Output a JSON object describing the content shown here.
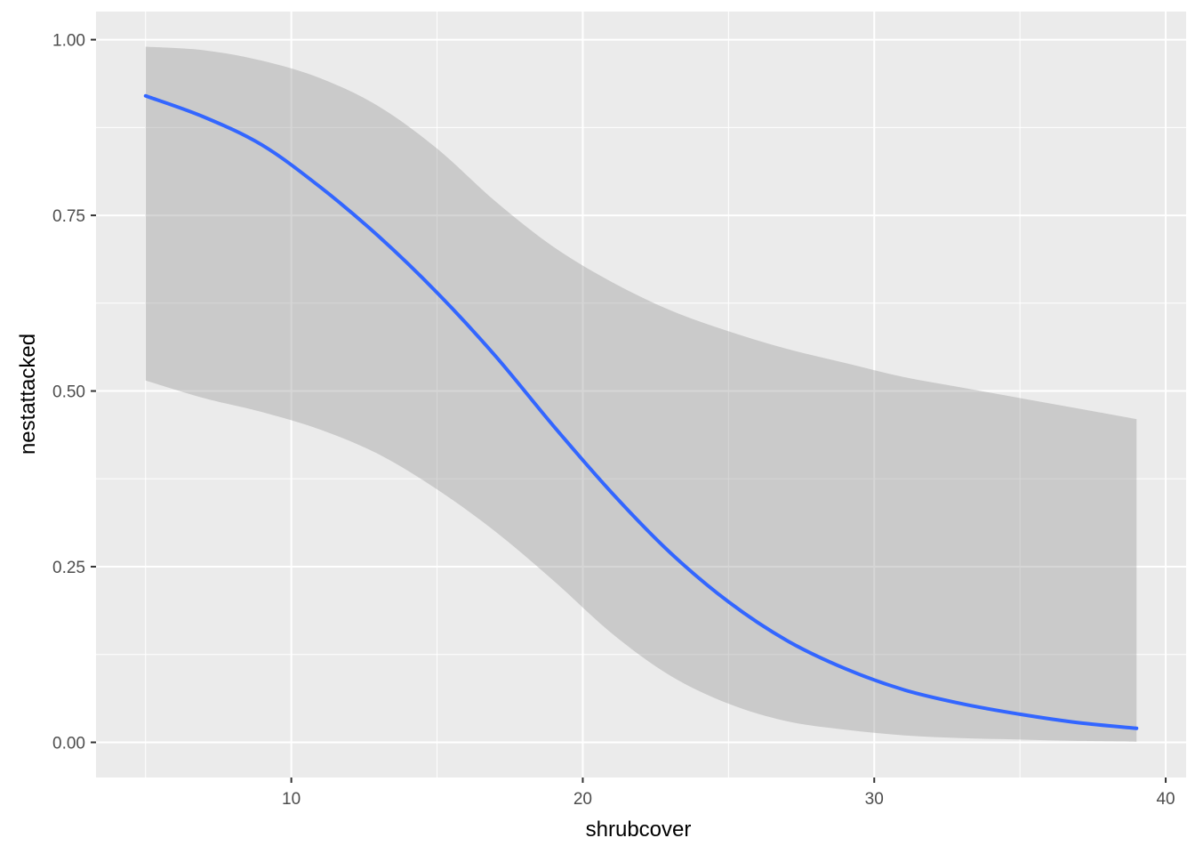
{
  "chart_data": {
    "type": "line",
    "xlabel": "shrubcover",
    "ylabel": "nestattacked",
    "xlim": [
      3.3,
      40.7
    ],
    "ylim": [
      -0.05,
      1.04
    ],
    "x_ticks": [
      10,
      20,
      30,
      40
    ],
    "x_minor_ticks": [
      5,
      15,
      25,
      35
    ],
    "y_ticks": [
      0.0,
      0.25,
      0.5,
      0.75,
      1.0
    ],
    "y_tick_labels": [
      "0.00",
      "0.25",
      "0.50",
      "0.75",
      "1.00"
    ],
    "y_minor_ticks": [
      0.125,
      0.375,
      0.625,
      0.875
    ],
    "grid": true,
    "panel_background": "#EBEBEB",
    "grid_color": "#FFFFFF",
    "line_color": "#3366FF",
    "ribbon_color": "#999999",
    "ribbon_opacity": 0.4,
    "series": [
      {
        "x": [
          5,
          7,
          9,
          11,
          13,
          15,
          17,
          19,
          21,
          23,
          25,
          27,
          29,
          31,
          33,
          35,
          37,
          39
        ],
        "y": [
          0.92,
          0.89,
          0.85,
          0.79,
          0.72,
          0.64,
          0.55,
          0.45,
          0.355,
          0.27,
          0.2,
          0.145,
          0.105,
          0.075,
          0.055,
          0.04,
          0.028,
          0.02
        ],
        "lower": [
          0.515,
          0.49,
          0.47,
          0.445,
          0.41,
          0.36,
          0.3,
          0.23,
          0.155,
          0.095,
          0.055,
          0.03,
          0.018,
          0.01,
          0.006,
          0.004,
          0.002,
          0.001
        ],
        "upper": [
          0.99,
          0.985,
          0.97,
          0.945,
          0.905,
          0.845,
          0.77,
          0.705,
          0.655,
          0.615,
          0.585,
          0.56,
          0.54,
          0.52,
          0.505,
          0.49,
          0.475,
          0.46
        ]
      }
    ]
  }
}
